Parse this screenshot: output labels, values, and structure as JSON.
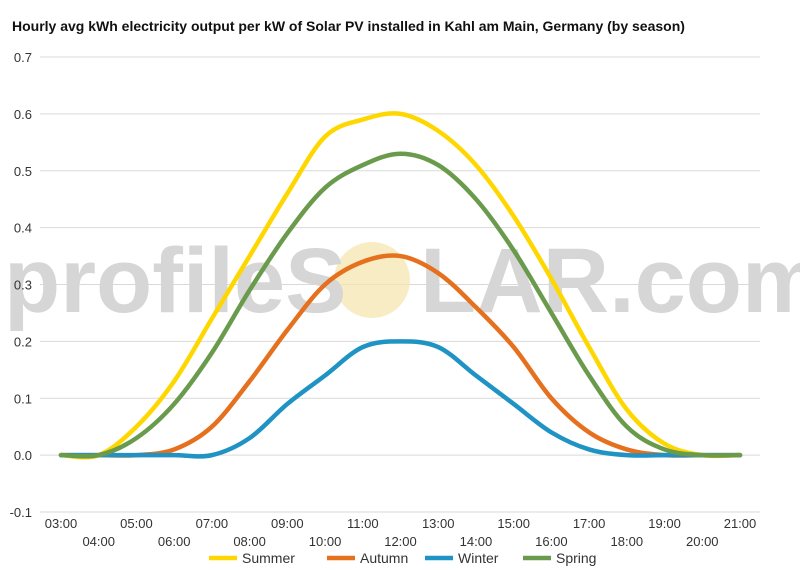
{
  "title": "Hourly avg kWh electricity output per kW of Solar PV installed in Kahl am Main, Germany (by season)",
  "watermark": {
    "left_text": "profileS",
    "right_text": "LAR.com",
    "sun_color": "#f5e6b0"
  },
  "chart_data": {
    "type": "line",
    "title": "Hourly avg kWh electricity output per kW of Solar PV installed in Kahl am Main, Germany (by season)",
    "xlabel": "",
    "ylabel": "",
    "ylim": [
      -0.1,
      0.7
    ],
    "yticks": [
      "-0.1",
      "0.0",
      "0.1",
      "0.2",
      "0.3",
      "0.4",
      "0.5",
      "0.6",
      "0.7"
    ],
    "x": [
      "03:00",
      "04:00",
      "05:00",
      "06:00",
      "07:00",
      "08:00",
      "09:00",
      "10:00",
      "11:00",
      "12:00",
      "13:00",
      "14:00",
      "15:00",
      "16:00",
      "17:00",
      "18:00",
      "19:00",
      "20:00",
      "21:00"
    ],
    "grid": true,
    "legend_position": "bottom",
    "series": [
      {
        "name": "Summer",
        "color": "#ffd700",
        "values": [
          0.0,
          0.0,
          0.05,
          0.13,
          0.24,
          0.35,
          0.46,
          0.56,
          0.59,
          0.6,
          0.57,
          0.51,
          0.42,
          0.31,
          0.19,
          0.08,
          0.02,
          0.0,
          0.0
        ]
      },
      {
        "name": "Autumn",
        "color": "#e5711f",
        "values": [
          0.0,
          0.0,
          0.0,
          0.01,
          0.05,
          0.13,
          0.22,
          0.3,
          0.34,
          0.35,
          0.32,
          0.26,
          0.19,
          0.1,
          0.04,
          0.01,
          0.0,
          0.0,
          0.0
        ]
      },
      {
        "name": "Winter",
        "color": "#1f93c3",
        "values": [
          0.0,
          0.0,
          0.0,
          0.0,
          0.0,
          0.03,
          0.09,
          0.14,
          0.19,
          0.2,
          0.19,
          0.14,
          0.09,
          0.04,
          0.01,
          0.0,
          0.0,
          0.0,
          0.0
        ]
      },
      {
        "name": "Spring",
        "color": "#6a9b4d",
        "values": [
          0.0,
          0.0,
          0.03,
          0.09,
          0.18,
          0.29,
          0.39,
          0.47,
          0.51,
          0.53,
          0.51,
          0.45,
          0.36,
          0.25,
          0.14,
          0.05,
          0.01,
          0.0,
          0.0
        ]
      }
    ]
  }
}
